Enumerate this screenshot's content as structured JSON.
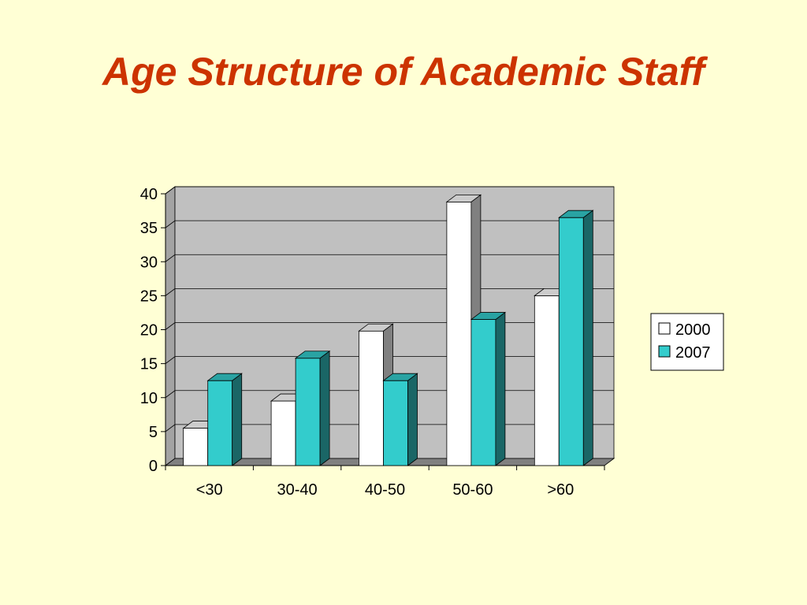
{
  "slide": {
    "title": "Age Structure of Academic Staff"
  },
  "chart_data": {
    "type": "bar",
    "categories": [
      "<30",
      "30-40",
      "40-50",
      "50-60",
      ">60"
    ],
    "series": [
      {
        "name": "2000",
        "values": [
          5.5,
          9.5,
          19.8,
          38.8,
          25.0
        ],
        "color": "#FFFFFF"
      },
      {
        "name": "2007",
        "values": [
          12.5,
          15.8,
          12.5,
          21.5,
          36.5
        ],
        "color": "#33CCCC"
      }
    ],
    "ylim": [
      0,
      40
    ],
    "yticks": [
      "0",
      "5",
      "10",
      "15",
      "20",
      "25",
      "30",
      "35",
      "40"
    ],
    "grid": true,
    "legend_position": "right",
    "style": "3d-clustered-column",
    "colors": {
      "plot_wall": "#C0C0C0",
      "floor": "#808080",
      "background": "#FFFFD5",
      "title": "#CC3300"
    }
  }
}
